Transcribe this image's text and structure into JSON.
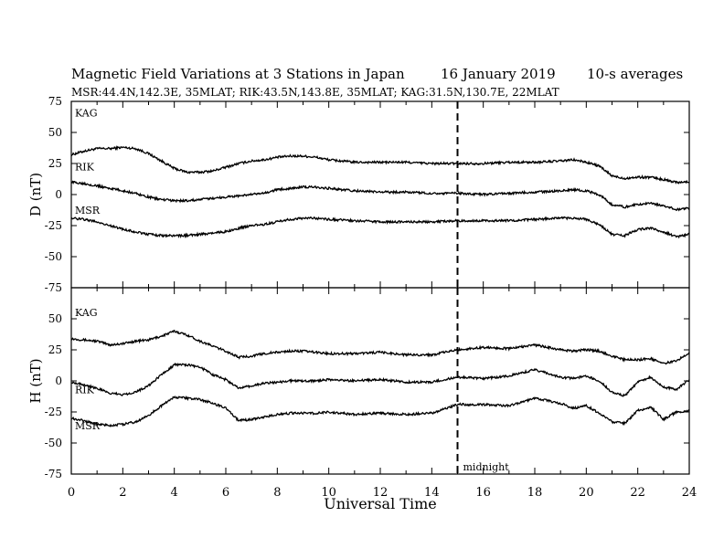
{
  "header": {
    "title": "Magnetic Field Variations at 3 Stations in Japan",
    "date": "16 January  2019",
    "averaging": "10-s averages",
    "stations_line": "MSR:44.4N,142.3E, 35MLAT;  RIK:43.5N,143.8E, 35MLAT;  KAG:31.5N,130.7E, 22MLAT"
  },
  "chart_data": [
    {
      "type": "line",
      "ylabel": "D (nT)",
      "ylim": [
        -75,
        75
      ],
      "yticks": [
        -75,
        -50,
        -25,
        0,
        25,
        50,
        75
      ],
      "xlim": [
        0,
        24
      ],
      "marker": {
        "x": 15,
        "label": ""
      },
      "series": [
        {
          "name": "KAG",
          "x": [
            0,
            0.5,
            1,
            1.5,
            2,
            2.5,
            3,
            3.5,
            4,
            4.5,
            5,
            5.5,
            6,
            6.5,
            7,
            7.5,
            8,
            8.5,
            9,
            9.5,
            10,
            11,
            12,
            13,
            14,
            15,
            16,
            17,
            18,
            19,
            19.5,
            20,
            20.5,
            21,
            21.5,
            22,
            22.5,
            23,
            23.5,
            24
          ],
          "y": [
            32,
            35,
            37,
            37,
            38,
            37,
            33,
            27,
            21,
            18,
            18,
            19,
            22,
            25,
            27,
            28,
            30,
            31,
            31,
            30,
            28,
            26,
            26,
            26,
            25,
            25,
            25,
            26,
            26,
            27,
            28,
            26,
            23,
            15,
            13,
            14,
            14,
            12,
            10,
            10
          ]
        },
        {
          "name": "RIK",
          "x": [
            0,
            0.5,
            1,
            1.5,
            2,
            2.5,
            3,
            3.5,
            4,
            4.5,
            5,
            5.5,
            6,
            6.5,
            7,
            7.5,
            8,
            8.5,
            9,
            9.5,
            10,
            11,
            12,
            13,
            14,
            15,
            16,
            17,
            18,
            19,
            19.5,
            20,
            20.5,
            21,
            21.5,
            22,
            22.5,
            23,
            23.5,
            24
          ],
          "y": [
            10,
            9,
            7,
            5,
            3,
            1,
            -2,
            -4,
            -5,
            -5,
            -4,
            -3,
            -2,
            -1,
            0,
            1,
            4,
            5,
            6,
            6,
            5,
            3,
            2,
            2,
            1,
            1,
            0,
            1,
            2,
            3,
            4,
            3,
            0,
            -8,
            -10,
            -8,
            -7,
            -9,
            -12,
            -11
          ]
        },
        {
          "name": "MSR",
          "x": [
            0,
            0.5,
            1,
            1.5,
            2,
            2.5,
            3,
            3.5,
            4,
            4.5,
            5,
            5.5,
            6,
            6.5,
            7,
            7.5,
            8,
            8.5,
            9,
            9.5,
            10,
            11,
            12,
            13,
            14,
            15,
            16,
            17,
            18,
            19,
            19.5,
            20,
            20.5,
            21,
            21.5,
            22,
            22.5,
            23,
            23.5,
            24
          ],
          "y": [
            -19,
            -20,
            -22,
            -25,
            -28,
            -30,
            -32,
            -33,
            -33,
            -33,
            -32,
            -31,
            -30,
            -27,
            -25,
            -24,
            -22,
            -20,
            -19,
            -19,
            -20,
            -21,
            -22,
            -22,
            -22,
            -21,
            -21,
            -21,
            -20,
            -19,
            -19,
            -20,
            -24,
            -32,
            -33,
            -28,
            -27,
            -30,
            -34,
            -32
          ]
        }
      ]
    },
    {
      "type": "line",
      "ylabel": "H (nT)",
      "xlabel": "Universal Time",
      "ylim": [
        -75,
        75
      ],
      "yticks": [
        -75,
        -50,
        -25,
        0,
        25,
        50
      ],
      "xlim": [
        0,
        24
      ],
      "xticks": [
        0,
        2,
        4,
        6,
        8,
        10,
        12,
        14,
        16,
        18,
        20,
        22,
        24
      ],
      "marker": {
        "x": 15,
        "label": "midnight"
      },
      "series": [
        {
          "name": "KAG",
          "x": [
            0,
            0.5,
            1,
            1.5,
            2,
            2.5,
            3,
            3.5,
            4,
            4.5,
            5,
            5.5,
            6,
            6.5,
            7,
            7.5,
            8,
            8.5,
            9,
            9.5,
            10,
            11,
            12,
            13,
            14,
            15,
            16,
            17,
            18,
            19,
            19.5,
            20,
            20.5,
            21,
            21.5,
            22,
            22.5,
            23,
            23.5,
            24
          ],
          "y": [
            34,
            33,
            32,
            29,
            30,
            32,
            33,
            36,
            40,
            37,
            32,
            28,
            24,
            19,
            20,
            22,
            23,
            24,
            24,
            23,
            22,
            22,
            23,
            21,
            21,
            25,
            27,
            26,
            29,
            25,
            24,
            25,
            24,
            20,
            17,
            17,
            18,
            14,
            16,
            23
          ]
        },
        {
          "name": "RIK",
          "x": [
            0,
            0.5,
            1,
            1.5,
            2,
            2.5,
            3,
            3.5,
            4,
            4.5,
            5,
            5.5,
            6,
            6.5,
            7,
            7.5,
            8,
            8.5,
            9,
            9.5,
            10,
            11,
            12,
            13,
            14,
            15,
            16,
            17,
            18,
            19,
            19.5,
            20,
            20.5,
            21,
            21.5,
            22,
            22.5,
            23,
            23.5,
            24
          ],
          "y": [
            -1,
            -3,
            -6,
            -10,
            -11,
            -9,
            -4,
            5,
            13,
            13,
            11,
            5,
            1,
            -6,
            -4,
            -2,
            -1,
            0,
            0,
            0,
            1,
            0,
            1,
            -1,
            -1,
            3,
            2,
            4,
            9,
            3,
            2,
            4,
            0,
            -9,
            -12,
            -1,
            3,
            -5,
            -7,
            1
          ]
        },
        {
          "name": "MSR",
          "x": [
            0,
            0.5,
            1,
            1.5,
            2,
            2.5,
            3,
            3.5,
            4,
            4.5,
            5,
            5.5,
            6,
            6.5,
            7,
            7.5,
            8,
            8.5,
            9,
            9.5,
            10,
            11,
            12,
            13,
            14,
            15,
            16,
            17,
            18,
            19,
            19.5,
            20,
            20.5,
            21,
            21.5,
            22,
            22.5,
            23,
            23.5,
            24
          ],
          "y": [
            -30,
            -32,
            -35,
            -36,
            -35,
            -33,
            -28,
            -20,
            -13,
            -14,
            -15,
            -18,
            -22,
            -32,
            -31,
            -29,
            -27,
            -26,
            -26,
            -26,
            -25,
            -27,
            -26,
            -27,
            -26,
            -19,
            -19,
            -20,
            -14,
            -18,
            -22,
            -20,
            -26,
            -33,
            -34,
            -24,
            -21,
            -31,
            -25,
            -24
          ]
        }
      ]
    }
  ]
}
